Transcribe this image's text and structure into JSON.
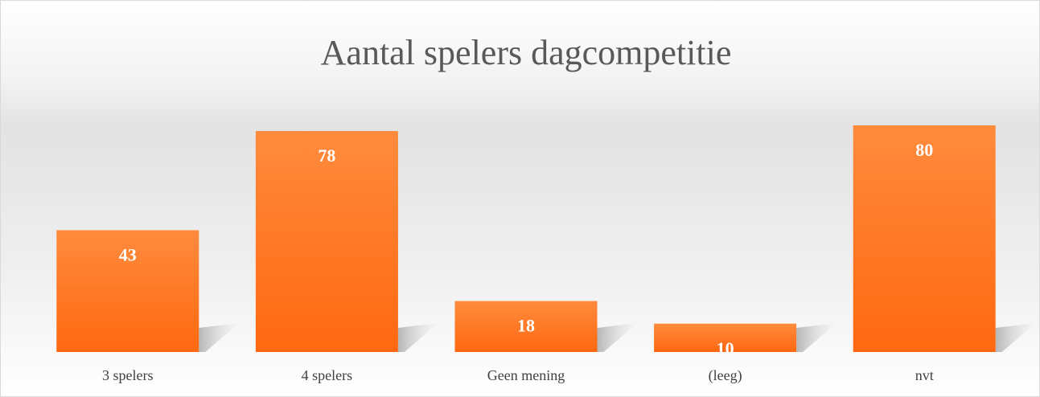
{
  "chart_data": {
    "type": "bar",
    "title": "Aantal spelers dagcompetitie",
    "categories": [
      "3 spelers",
      "4 spelers",
      "Geen mening",
      "(leeg)",
      "nvt"
    ],
    "values": [
      43,
      78,
      18,
      10,
      80
    ],
    "color": "#ff7a22",
    "ylim": [
      0,
      80
    ],
    "data_labels": true
  }
}
